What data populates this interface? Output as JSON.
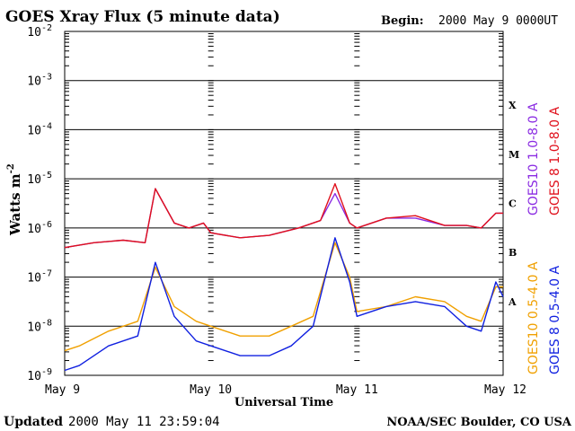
{
  "chart_data": {
    "type": "line",
    "title": "GOES Xray Flux (5 minute data)",
    "begin_label": "Begin:",
    "begin_value": "2000 May 9 0000UT",
    "ylabel": "Watts m",
    "ylabel_sup": "-2",
    "xlabel": "Universal Time",
    "y_scale": "log",
    "ylim_exp": [
      -9,
      -2
    ],
    "y_ticks": [
      {
        "base": "10",
        "exp": "-2"
      },
      {
        "base": "10",
        "exp": "-3"
      },
      {
        "base": "10",
        "exp": "-4"
      },
      {
        "base": "10",
        "exp": "-5"
      },
      {
        "base": "10",
        "exp": "-6"
      },
      {
        "base": "10",
        "exp": "-7"
      },
      {
        "base": "10",
        "exp": "-8"
      },
      {
        "base": "10",
        "exp": "-9"
      }
    ],
    "x_ticks": [
      "May 9",
      "May 10",
      "May 11",
      "May 12"
    ],
    "xlim_days": [
      0,
      3
    ],
    "flare_classes": [
      {
        "label": "X",
        "exp": -3.5
      },
      {
        "label": "M",
        "exp": -4.5
      },
      {
        "label": "C",
        "exp": -5.5
      },
      {
        "label": "B",
        "exp": -6.5
      },
      {
        "label": "A",
        "exp": -7.5
      }
    ],
    "series": [
      {
        "name": "GOES10 1.0-8.0 A",
        "color": "#8a2be2",
        "band": "long",
        "x": [
          0,
          0.2,
          0.4,
          0.55,
          0.62,
          0.75,
          0.85,
          0.95,
          1.0,
          1.2,
          1.4,
          1.6,
          1.75,
          1.85,
          1.95,
          2.0,
          2.2,
          2.4,
          2.6,
          2.75,
          2.85,
          2.95,
          3.0
        ],
        "y": [
          -6.4,
          -6.3,
          -6.25,
          -6.3,
          -5.2,
          -5.9,
          -6.0,
          -5.9,
          -6.1,
          -6.2,
          -6.15,
          -6.0,
          -5.85,
          -5.3,
          -5.9,
          -6.0,
          -5.8,
          -5.8,
          -5.95,
          -5.95,
          -6.0,
          -5.7,
          -5.7
        ]
      },
      {
        "name": "GOES 8 1.0-8.0 A",
        "color": "#e0101c",
        "band": "long",
        "x": [
          0,
          0.2,
          0.4,
          0.55,
          0.62,
          0.75,
          0.85,
          0.95,
          1.0,
          1.2,
          1.4,
          1.6,
          1.75,
          1.85,
          1.95,
          2.0,
          2.2,
          2.4,
          2.6,
          2.75,
          2.85,
          2.95,
          3.0
        ],
        "y": [
          -6.4,
          -6.3,
          -6.25,
          -6.3,
          -5.2,
          -5.9,
          -6.0,
          -5.9,
          -6.1,
          -6.2,
          -6.15,
          -6.0,
          -5.85,
          -5.1,
          -5.9,
          -6.0,
          -5.8,
          -5.75,
          -5.95,
          -5.95,
          -6.0,
          -5.7,
          -5.7
        ]
      },
      {
        "name": "GOES10 0.5-4.0 A",
        "color": "#f0a000",
        "band": "short",
        "x": [
          0,
          0.1,
          0.3,
          0.5,
          0.62,
          0.75,
          0.9,
          1.0,
          1.2,
          1.4,
          1.55,
          1.7,
          1.85,
          1.95,
          2.0,
          2.2,
          2.4,
          2.6,
          2.75,
          2.85,
          2.95,
          3.0
        ],
        "y": [
          -8.5,
          -8.4,
          -8.1,
          -7.9,
          -6.8,
          -7.6,
          -7.9,
          -8.0,
          -8.2,
          -8.2,
          -8.0,
          -7.8,
          -6.3,
          -7.0,
          -7.7,
          -7.6,
          -7.4,
          -7.5,
          -7.8,
          -7.9,
          -7.2,
          -7.2
        ]
      },
      {
        "name": "GOES 8 0.5-4.0 A",
        "color": "#1020e0",
        "band": "short",
        "x": [
          0,
          0.1,
          0.3,
          0.5,
          0.62,
          0.75,
          0.9,
          1.0,
          1.2,
          1.4,
          1.55,
          1.7,
          1.85,
          1.95,
          2.0,
          2.2,
          2.4,
          2.6,
          2.75,
          2.85,
          2.95,
          3.0
        ],
        "y": [
          -8.9,
          -8.8,
          -8.4,
          -8.2,
          -6.7,
          -7.8,
          -8.3,
          -8.4,
          -8.6,
          -8.6,
          -8.4,
          -8.0,
          -6.2,
          -7.1,
          -7.8,
          -7.6,
          -7.5,
          -7.6,
          -8.0,
          -8.1,
          -7.1,
          -7.4
        ]
      }
    ]
  },
  "footer": {
    "updated_label": "Updated",
    "updated_value": "2000 May 11 23:59:04",
    "credit": "NOAA/SEC Boulder, CO USA"
  }
}
